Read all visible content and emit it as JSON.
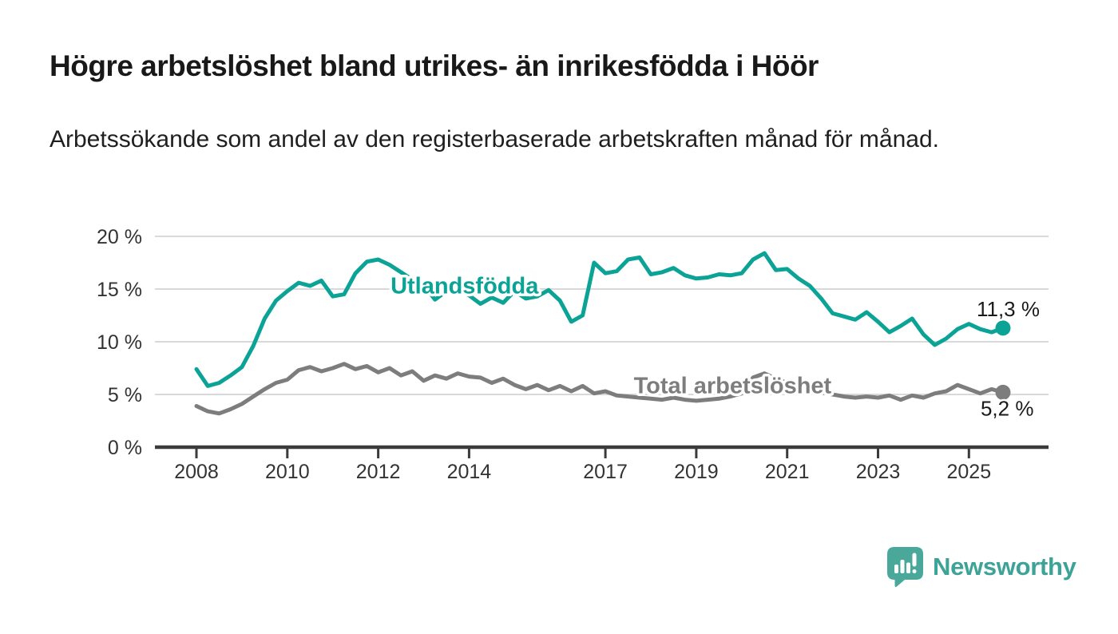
{
  "title": "Högre arbetslöshet bland utrikes- än inrikesfödda i Höör",
  "subtitle": "Arbetssökande som andel av den registerbaserade arbetskraften månad för månad.",
  "logo": {
    "text": "Newsworthy",
    "color": "#3ca396",
    "icon_color": "#4aa89b"
  },
  "chart_data": {
    "type": "line",
    "title": "",
    "xlabel": "",
    "ylabel": "",
    "x_unit": "year (monthly share of labour force, quarterly estimates)",
    "x_start": 2008.0,
    "x_step": 0.25,
    "xlim": [
      2007.1,
      2026.8
    ],
    "ylim": [
      0,
      20
    ],
    "grid": true,
    "legend_position": "inline-labels",
    "x_ticks": [
      2008,
      2010,
      2012,
      2014,
      2017,
      2019,
      2021,
      2023,
      2025
    ],
    "y_ticks": [
      0,
      5,
      10,
      15,
      20
    ],
    "y_tick_labels": [
      "0 %",
      "5 %",
      "10 %",
      "15 %",
      "20 %"
    ],
    "axis_color": "#3b3b3b",
    "grid_color": "#d9d9d9",
    "tick_label_color": "#333333",
    "end_label_color": "#1a1a1a",
    "series": [
      {
        "name": "Utlandsfödda",
        "color": "#0ba396",
        "end_label": "11,3 %",
        "end_value": 11.3,
        "label_anchor": {
          "x": 2013.9,
          "y": 14.6
        },
        "values": [
          7.4,
          5.8,
          6.1,
          6.8,
          7.6,
          9.6,
          12.2,
          13.9,
          14.8,
          15.6,
          15.3,
          15.8,
          14.3,
          14.5,
          16.5,
          17.6,
          17.8,
          17.3,
          16.6,
          15.9,
          15.4,
          14.0,
          14.8,
          15.0,
          14.4,
          13.6,
          14.2,
          13.7,
          14.8,
          14.1,
          14.3,
          14.9,
          13.9,
          11.9,
          12.5,
          17.5,
          16.5,
          16.7,
          17.8,
          18.0,
          16.4,
          16.6,
          17.0,
          16.3,
          16.0,
          16.1,
          16.4,
          16.3,
          16.5,
          17.8,
          18.4,
          16.8,
          16.9,
          16.0,
          15.3,
          14.1,
          12.7,
          12.4,
          12.1,
          12.8,
          11.9,
          10.9,
          11.5,
          12.2,
          10.7,
          9.7,
          10.3,
          11.2,
          11.7,
          11.2,
          10.9,
          11.3
        ]
      },
      {
        "name": "Total arbetslöshet",
        "color": "#7d7d7d",
        "end_label": "5,2 %",
        "end_value": 5.2,
        "label_anchor": {
          "x": 2019.8,
          "y": 5.1
        },
        "values": [
          3.9,
          3.4,
          3.2,
          3.6,
          4.1,
          4.8,
          5.5,
          6.1,
          6.4,
          7.3,
          7.6,
          7.2,
          7.5,
          7.9,
          7.4,
          7.7,
          7.1,
          7.5,
          6.8,
          7.2,
          6.3,
          6.8,
          6.5,
          7.0,
          6.7,
          6.6,
          6.1,
          6.5,
          5.9,
          5.5,
          5.9,
          5.4,
          5.8,
          5.3,
          5.8,
          5.1,
          5.3,
          4.9,
          4.8,
          4.7,
          4.6,
          4.5,
          4.7,
          4.5,
          4.4,
          4.5,
          4.6,
          4.8,
          5.1,
          6.6,
          7.0,
          6.5,
          6.1,
          5.8,
          5.4,
          5.2,
          5.0,
          4.8,
          4.7,
          4.8,
          4.7,
          4.9,
          4.5,
          4.9,
          4.7,
          5.1,
          5.3,
          5.9,
          5.5,
          5.1,
          5.5,
          5.2
        ]
      }
    ]
  }
}
